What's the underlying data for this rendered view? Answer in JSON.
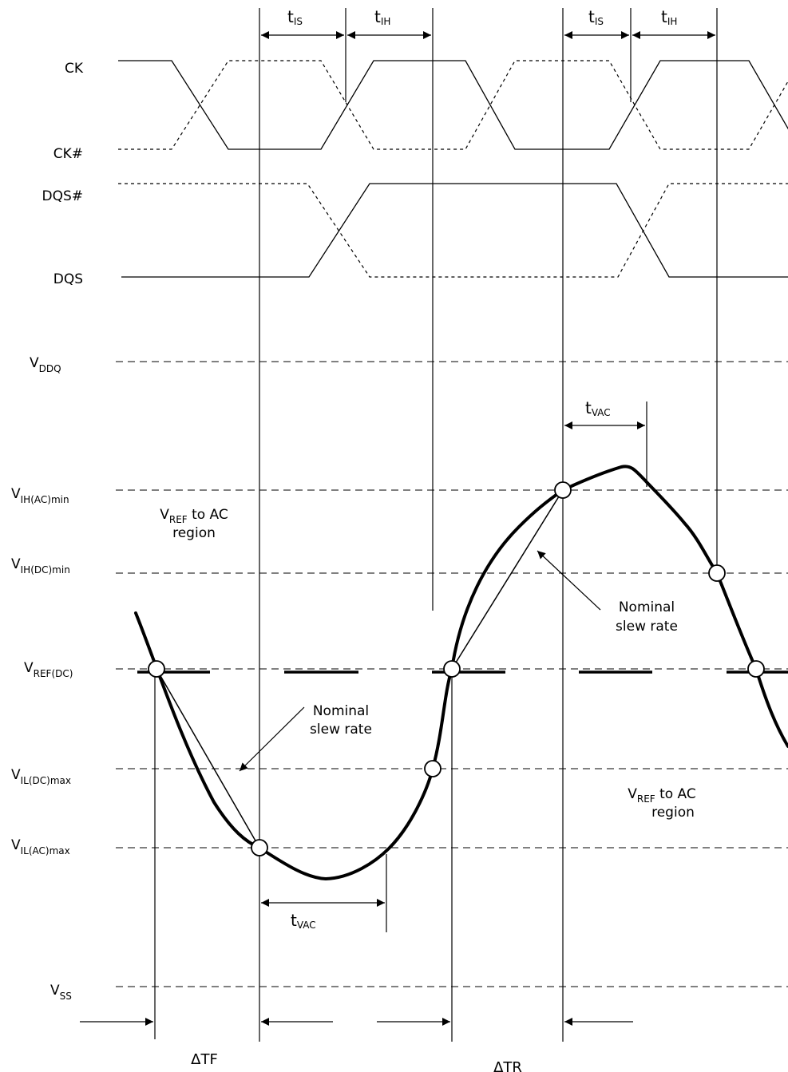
{
  "signals": {
    "ck": "CK",
    "ck_n": "CK#",
    "dqs_n": "DQS#",
    "dqs": "DQS"
  },
  "levels": {
    "vddq": {
      "base": "V",
      "sub": "DDQ"
    },
    "vih_ac": {
      "base": "V",
      "sub": "IH(AC)min"
    },
    "vih_dc": {
      "base": "V",
      "sub": "IH(DC)min"
    },
    "vref_dc": {
      "base": "V",
      "sub": "REF(DC)"
    },
    "vil_dc": {
      "base": "V",
      "sub": "IL(DC)max"
    },
    "vil_ac": {
      "base": "V",
      "sub": "IL(AC)max"
    },
    "vss": {
      "base": "V",
      "sub": "SS"
    }
  },
  "timing": {
    "tis": {
      "base": "t",
      "sub": "IS"
    },
    "tih": {
      "base": "t",
      "sub": "IH"
    },
    "tvac": {
      "base": "t",
      "sub": "VAC"
    }
  },
  "annotations": {
    "vref_region_1": {
      "base": "V",
      "sub": "REF",
      "suffix": " to AC",
      "line2": "region"
    },
    "vref_region_2": {
      "base": "V",
      "sub": "REF",
      "suffix": " to AC",
      "line2": "region"
    },
    "nominal_1": {
      "line1": "Nominal",
      "line2": "slew rate"
    },
    "nominal_2": {
      "line1": "Nominal",
      "line2": "slew rate"
    }
  },
  "deltas": {
    "tf": "ΔTF",
    "tr": "ΔTR"
  }
}
